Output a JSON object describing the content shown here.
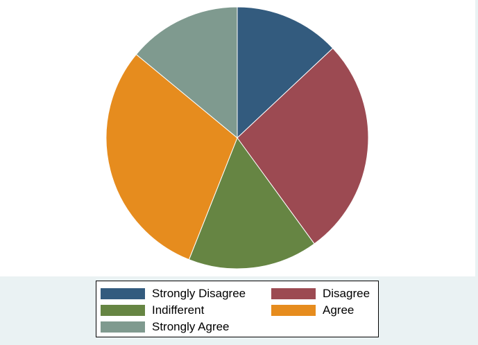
{
  "chart_data": {
    "type": "pie",
    "categories": [
      "Strongly Disagree",
      "Disagree",
      "Indifferent",
      "Agree",
      "Strongly Agree"
    ],
    "values": [
      13,
      27,
      16,
      30,
      14
    ],
    "colors": [
      "#335b7e",
      "#9c4a52",
      "#668543",
      "#e68c1e",
      "#7f9a8f"
    ],
    "start_angle_deg": 0,
    "direction": "clockwise",
    "legend": {
      "position": "bottom",
      "columns": 2,
      "entries": [
        "Strongly Disagree",
        "Disagree",
        "Indifferent",
        "Agree",
        "Strongly Agree"
      ]
    }
  }
}
